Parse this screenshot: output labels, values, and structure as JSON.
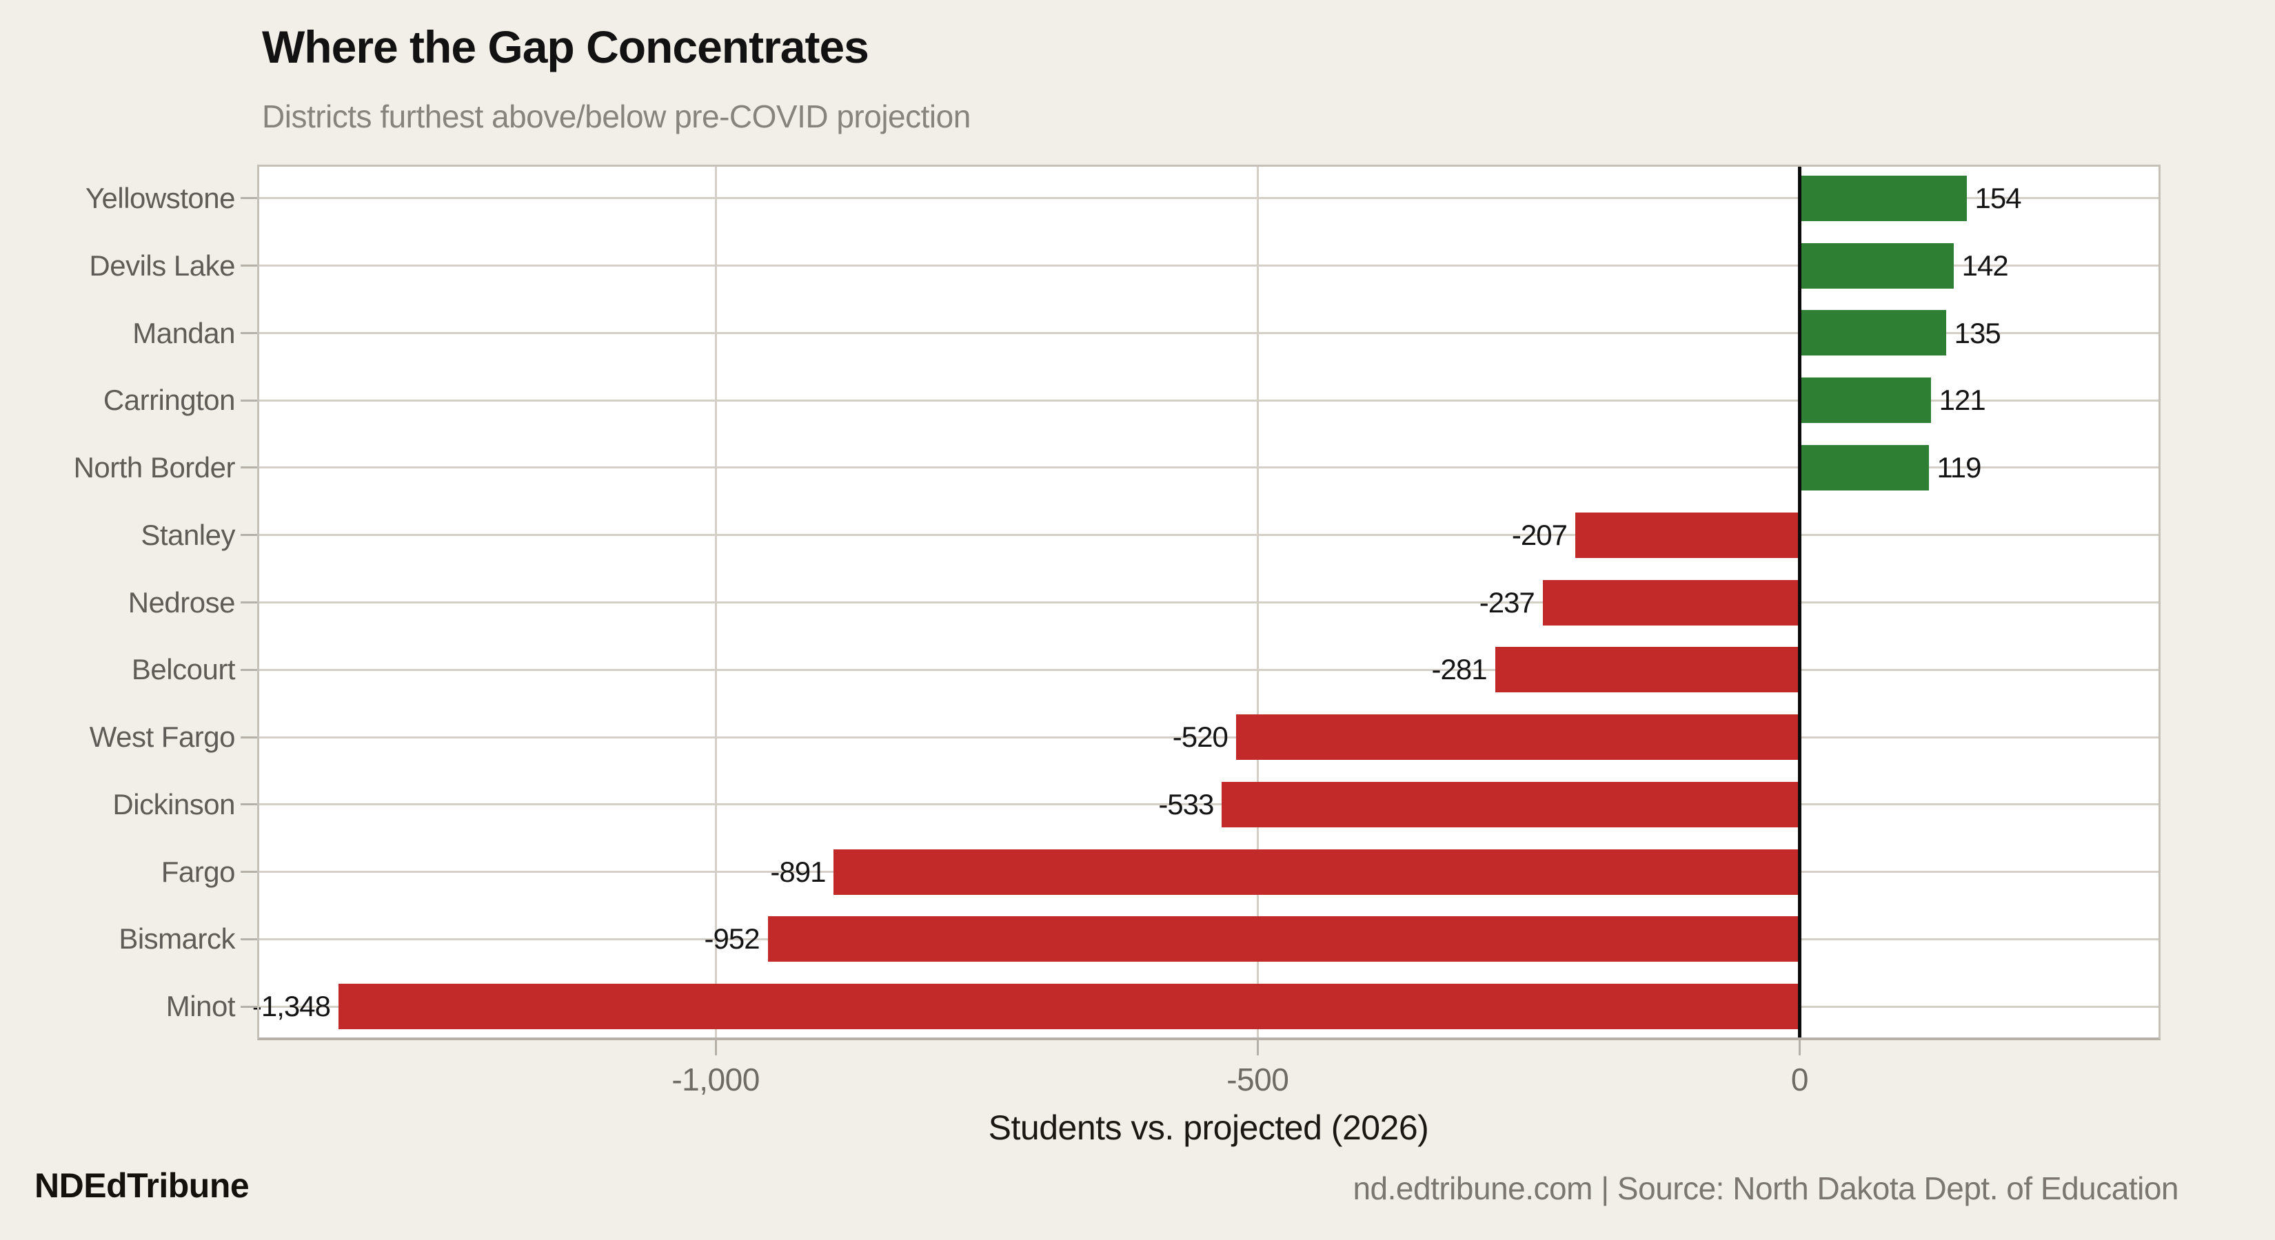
{
  "chart_data": {
    "type": "bar",
    "orientation": "horizontal",
    "title": "Where the Gap Concentrates",
    "subtitle": "Districts furthest above/below pre-COVID projection",
    "xlabel": "Students vs. projected (2026)",
    "categories": [
      "Yellowstone",
      "Devils Lake",
      "Mandan",
      "Carrington",
      "North Border",
      "Stanley",
      "Nedrose",
      "Belcourt",
      "West Fargo",
      "Dickinson",
      "Fargo",
      "Bismarck",
      "Minot"
    ],
    "values": [
      154,
      142,
      135,
      121,
      119,
      -207,
      -237,
      -281,
      -520,
      -533,
      -891,
      -952,
      -1348
    ],
    "value_labels": [
      "154",
      "142",
      "135",
      "121",
      "119",
      "-207",
      "-237",
      "-281",
      "-520",
      "-533",
      "-891",
      "-952",
      "-1,348"
    ],
    "xlim": [
      -1423,
      333
    ],
    "xticks": [
      {
        "value": -1000,
        "label": "-1,000"
      },
      {
        "value": -500,
        "label": "-500"
      },
      {
        "value": 0,
        "label": "0"
      }
    ],
    "grid": "horizontal-and-vertical",
    "legend": "none",
    "colors": {
      "positive": "#2e7e33",
      "negative": "#c22a2a"
    }
  },
  "footer": {
    "brand": "NDEdTribune",
    "source": "nd.edtribune.com | Source: North Dakota Dept. of Education"
  },
  "colors": {
    "background": "#f2efe9",
    "plot_background": "#ffffff",
    "grid": "#d5d0c7",
    "zero_line": "#0c0c0c",
    "tick": "#b5b0a8",
    "tick_label": "#6e6a64",
    "category_label": "#5f5b56",
    "value_label": "#141414"
  }
}
